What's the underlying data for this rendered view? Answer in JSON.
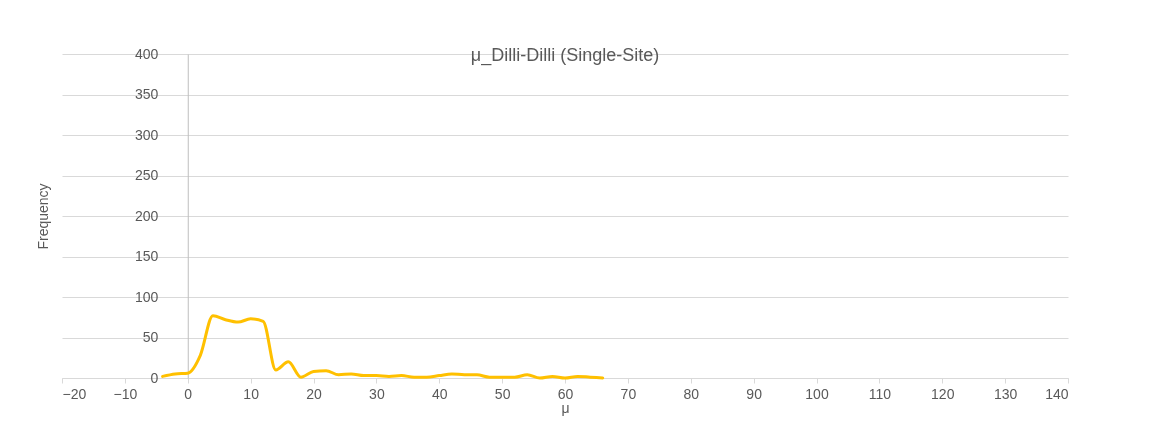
{
  "chart_data": {
    "type": "line",
    "title": "μ_Dilli-Dilli (Single-Site)",
    "xlabel": "μ",
    "ylabel": "Frequency",
    "x": [
      -4,
      -2,
      0,
      2,
      4,
      6,
      8,
      10,
      12,
      14,
      16,
      18,
      20,
      22,
      24,
      26,
      28,
      30,
      32,
      34,
      36,
      38,
      40,
      42,
      44,
      46,
      48,
      50,
      52,
      54,
      56,
      58,
      60,
      62,
      64,
      66
    ],
    "series": [
      {
        "color": "#ffc000",
        "values": [
          2,
          5,
          6,
          28,
          77,
          72,
          69,
          73,
          70,
          10,
          20,
          1,
          8,
          9,
          4,
          5,
          3,
          3,
          2,
          3,
          1,
          1,
          3,
          5,
          4,
          4,
          1,
          1,
          1,
          4,
          0,
          2,
          0,
          2,
          1,
          0
        ]
      }
    ],
    "xlim": [
      -20,
      140
    ],
    "xticks": [
      -20,
      -10,
      0,
      10,
      20,
      30,
      40,
      50,
      60,
      70,
      80,
      90,
      100,
      110,
      120,
      130,
      140
    ],
    "ylim": [
      0,
      400
    ],
    "yticks": [
      0,
      50,
      100,
      150,
      200,
      250,
      300,
      350,
      400
    ],
    "grid": "y",
    "marker": "none",
    "line_style": "solid"
  }
}
